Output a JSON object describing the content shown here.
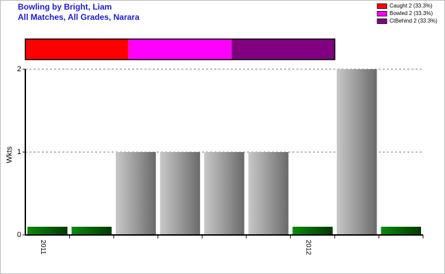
{
  "chart_data": [
    {
      "type": "bar",
      "title": "Bowling by Bright, Liam",
      "subtitle": "All Matches, All Grades, Narara",
      "ylabel": "Wkts",
      "categories": [
        "2011",
        null,
        null,
        null,
        null,
        null,
        "2012",
        null,
        null
      ],
      "values": [
        0,
        0,
        1,
        1,
        1,
        1,
        0,
        2,
        0
      ],
      "ylim": [
        0,
        2
      ],
      "yticks": [
        0,
        1,
        2
      ],
      "grid": true
    },
    {
      "type": "proportion",
      "series": [
        {
          "name": "Caught 2 (33.3%)",
          "color": "#ff0000",
          "values": [
            2
          ]
        },
        {
          "name": "Bowled 2 (33.3%)",
          "color": "#ff00ff",
          "values": [
            2
          ]
        },
        {
          "name": "CtBehind 2 (33.3%)",
          "color": "#800080",
          "values": [
            2
          ]
        }
      ]
    }
  ]
}
